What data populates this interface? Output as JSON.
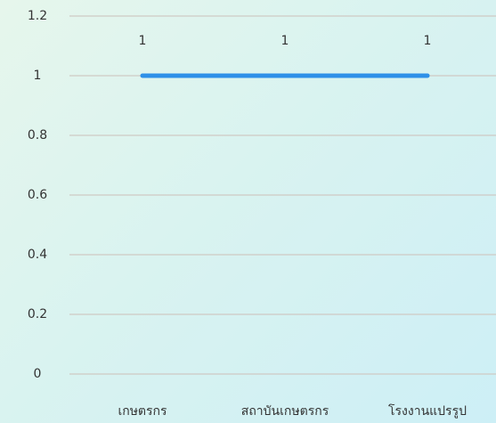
{
  "chart_data": {
    "type": "line",
    "categories": [
      "เกษตรกร",
      "สถาบันเกษตรกร",
      "โรงงานแปรรูป"
    ],
    "values": [
      1,
      1,
      1
    ],
    "color": "#2e90e8",
    "ylim": [
      0,
      1.2
    ],
    "yticks": [
      0,
      0.2,
      0.4,
      0.6,
      0.8,
      1,
      1.2
    ],
    "grid": true
  }
}
